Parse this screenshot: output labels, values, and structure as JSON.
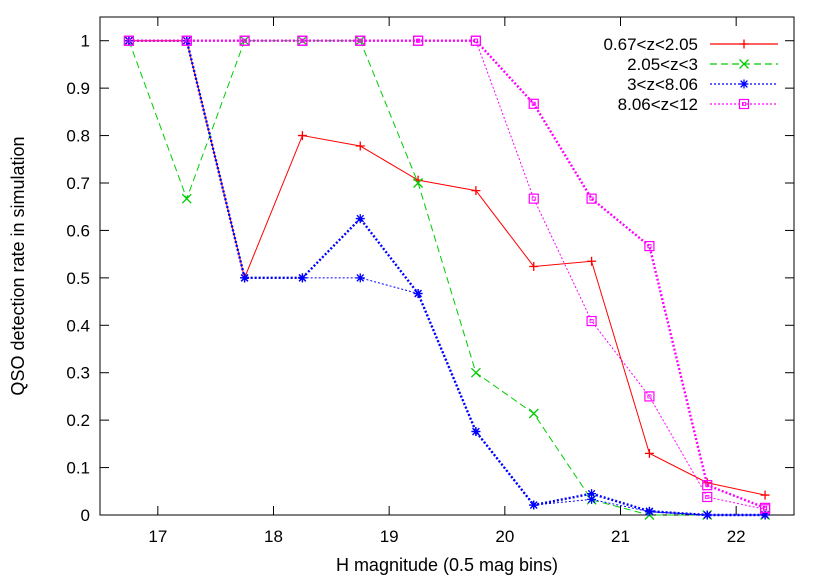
{
  "chart_data": {
    "type": "line",
    "xlabel": "H magnitude (0.5 mag bins)",
    "ylabel": "QSO detection rate in simulation",
    "xlim": [
      16.5,
      22.5
    ],
    "ylim": [
      0,
      1.05
    ],
    "xticks": [
      17,
      18,
      19,
      20,
      21,
      22
    ],
    "yticks": [
      0,
      0.1,
      0.2,
      0.3,
      0.4,
      0.5,
      0.6,
      0.7,
      0.8,
      0.9,
      1
    ],
    "grid": false,
    "legend_position": "top-right",
    "x": [
      16.75,
      17.25,
      17.75,
      18.25,
      18.75,
      19.25,
      19.75,
      20.25,
      20.75,
      21.25,
      21.75,
      22.25
    ],
    "series": [
      {
        "name": "0.67<z<2.05",
        "color": "#ff0000",
        "marker": "plus",
        "dash": "solid",
        "values": [
          1.0,
          1.0,
          0.5,
          0.8,
          0.778,
          0.706,
          0.684,
          0.524,
          0.535,
          0.13,
          0.068,
          0.042
        ]
      },
      {
        "name": "2.05<z<3",
        "color": "#00cc00",
        "marker": "cross",
        "dash": "dashed",
        "values": [
          1.0,
          0.667,
          1.0,
          1.0,
          1.0,
          0.7,
          0.3,
          0.214,
          0.032,
          0.0,
          0.0,
          0.0
        ]
      },
      {
        "name": "3<z<8.06",
        "color": "#0000ff",
        "marker": "star",
        "dash": "dotted",
        "values": [
          1.0,
          1.0,
          0.5,
          0.5,
          0.5,
          0.467,
          0.176,
          0.021,
          0.033,
          0.007,
          0.0,
          0.0
        ]
      },
      {
        "name": "8.06<z<12",
        "color": "#ff00ff",
        "marker": "square",
        "dash": "dotted",
        "values": [
          1.0,
          1.0,
          1.0,
          1.0,
          1.0,
          1.0,
          1.0,
          0.667,
          0.409,
          0.25,
          0.038,
          0.012
        ]
      }
    ],
    "overlay_series": [
      {
        "color": "#0000ff",
        "marker": "star",
        "values": [
          1.0,
          1.0,
          0.5,
          0.5,
          0.625,
          0.467,
          0.176,
          0.021,
          0.045,
          0.008,
          0.0,
          0.0
        ]
      },
      {
        "color": "#ff00ff",
        "marker": "square",
        "values": [
          1.0,
          1.0,
          1.0,
          1.0,
          1.0,
          1.0,
          1.0,
          0.867,
          0.667,
          0.567,
          0.063,
          0.015
        ]
      }
    ]
  }
}
